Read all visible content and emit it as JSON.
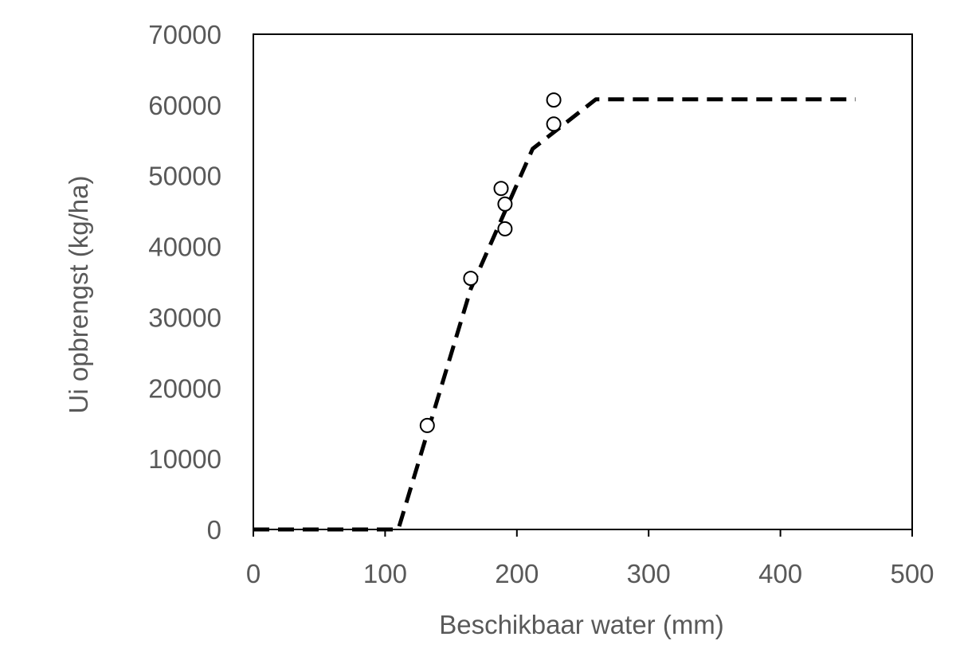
{
  "chart_data": {
    "type": "scatter",
    "title": "",
    "xlabel": "Beschikbaar water (mm)",
    "ylabel": "Ui opbrengst (kg/ha)",
    "xlim": [
      0,
      500
    ],
    "ylim": [
      0,
      70000
    ],
    "x_ticks": [
      "0",
      "100",
      "200",
      "300",
      "400",
      "500"
    ],
    "y_ticks": [
      "0",
      "10000",
      "20000",
      "30000",
      "40000",
      "50000",
      "60000",
      "70000"
    ],
    "grid": false,
    "legend": "none",
    "series": [
      {
        "kind": "scatter",
        "marker": "open-circle",
        "color": "#000000",
        "points": [
          {
            "x": 132,
            "y": 14700
          },
          {
            "x": 165,
            "y": 35500
          },
          {
            "x": 188,
            "y": 48200
          },
          {
            "x": 191,
            "y": 46000
          },
          {
            "x": 191,
            "y": 42500
          },
          {
            "x": 228,
            "y": 60700
          },
          {
            "x": 228,
            "y": 57300
          }
        ]
      },
      {
        "kind": "line",
        "style": "dashed",
        "color": "#000000",
        "points": [
          {
            "x": 0,
            "y": 0
          },
          {
            "x": 110,
            "y": 0
          },
          {
            "x": 165,
            "y": 34000
          },
          {
            "x": 212,
            "y": 53800
          },
          {
            "x": 260,
            "y": 60800
          },
          {
            "x": 457,
            "y": 60800
          }
        ]
      }
    ]
  }
}
